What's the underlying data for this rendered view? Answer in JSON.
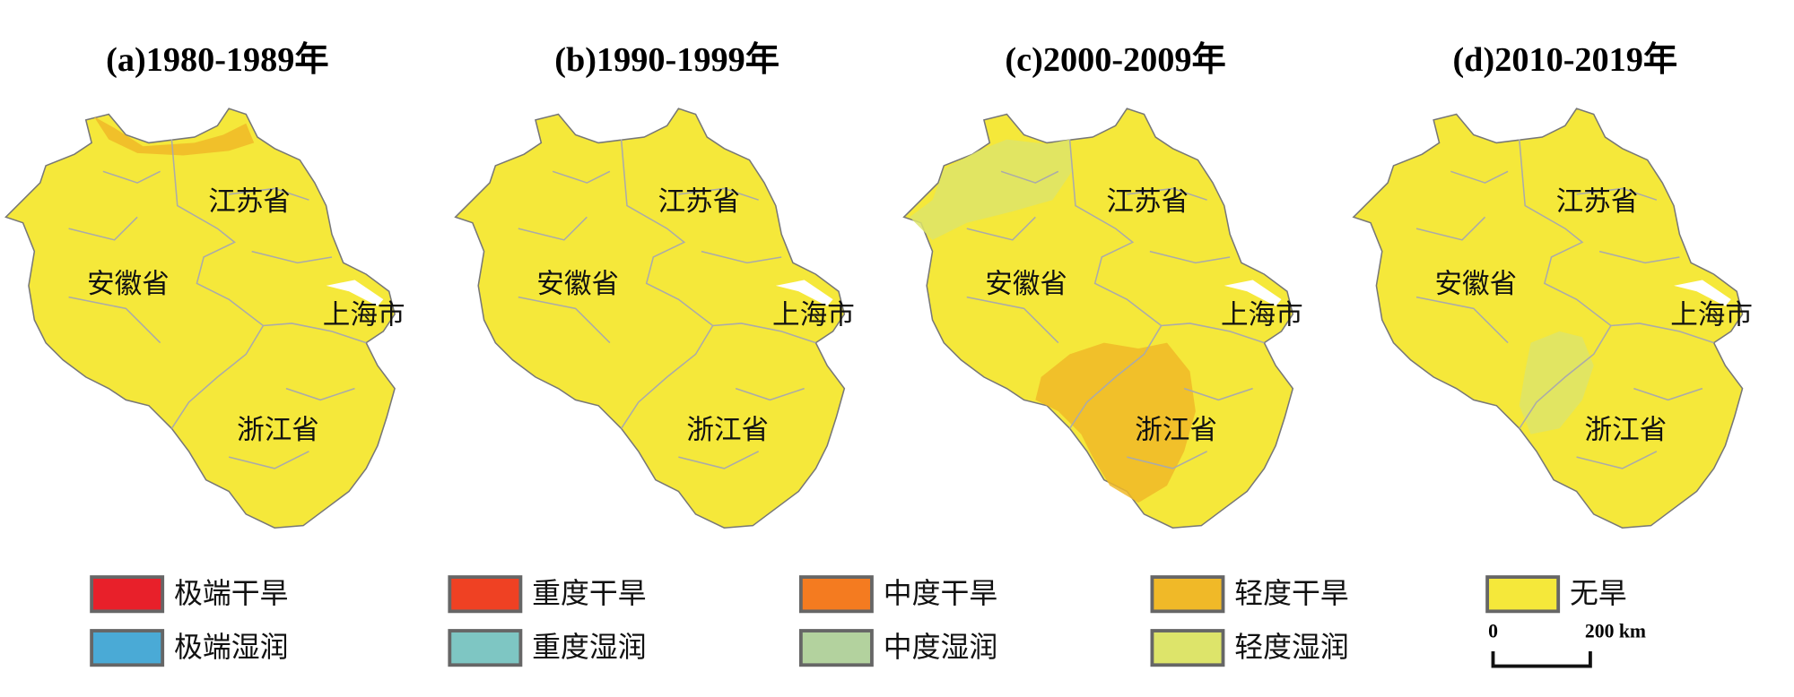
{
  "panels": [
    {
      "title": "(a)1980-1989年",
      "labels": [
        "江苏省",
        "安徽省",
        "上海市",
        "浙江省"
      ]
    },
    {
      "title": "(b)1990-1999年",
      "labels": [
        "江苏省",
        "安徽省",
        "上海市",
        "浙江省"
      ]
    },
    {
      "title": "(c)2000-2009年",
      "labels": [
        "江苏省",
        "安徽省",
        "上海市",
        "浙江省"
      ]
    },
    {
      "title": "(d)2010-2019年",
      "labels": [
        "江苏省",
        "安徽省",
        "上海市",
        "浙江省"
      ]
    }
  ],
  "legend": [
    {
      "label": "极端干旱",
      "color": "#e8202a"
    },
    {
      "label": "重度干旱",
      "color": "#ef4123"
    },
    {
      "label": "中度干旱",
      "color": "#f47b20"
    },
    {
      "label": "轻度干旱",
      "color": "#f0b928"
    },
    {
      "label": "无旱",
      "color": "#f5e83a"
    },
    {
      "label": "极端湿润",
      "color": "#4aaad6"
    },
    {
      "label": "重度湿润",
      "color": "#7ec6c3"
    },
    {
      "label": "中度湿润",
      "color": "#b3d29e"
    },
    {
      "label": "轻度湿润",
      "color": "#dde46a"
    }
  ],
  "scale_bar": {
    "start": "0",
    "end": "200 km"
  }
}
